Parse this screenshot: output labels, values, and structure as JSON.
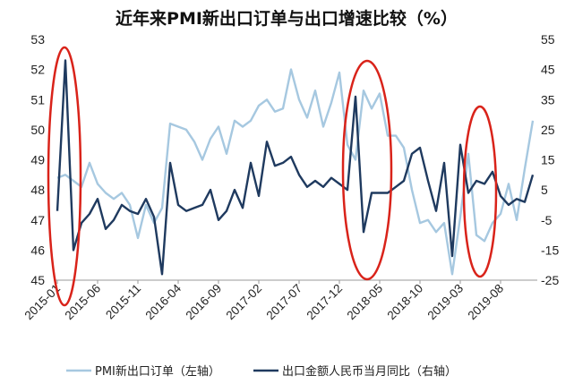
{
  "chart_data": {
    "type": "line",
    "title": "近年来PMI新出口订单与出口增速比较（%）",
    "left_axis": {
      "min": 45,
      "max": 53,
      "ticks": [
        45,
        46,
        47,
        48,
        49,
        50,
        51,
        52,
        53
      ]
    },
    "right_axis": {
      "min": -25,
      "max": 55,
      "ticks": [
        -25,
        -15,
        -5,
        5,
        15,
        25,
        35,
        45,
        55
      ]
    },
    "x_tick_labels": [
      "2015-01",
      "2015-06",
      "2015-11",
      "2016-04",
      "2016-09",
      "2017-02",
      "2017-07",
      "2017-12",
      "2018-05",
      "2018-10",
      "2019-03",
      "2019-08"
    ],
    "x_tick_indices": [
      0,
      5,
      10,
      15,
      20,
      25,
      30,
      35,
      40,
      45,
      50,
      55
    ],
    "grid": false,
    "legend_position": "bottom",
    "series": [
      {
        "name": "PMI新出口订单（左轴）",
        "axis": "left",
        "color": "#a6c8e0",
        "values": [
          48.4,
          48.5,
          48.3,
          48.1,
          48.9,
          48.2,
          47.9,
          47.7,
          47.9,
          47.5,
          46.4,
          47.5,
          46.9,
          47.4,
          50.2,
          50.1,
          50.0,
          49.6,
          49.0,
          49.7,
          50.1,
          49.2,
          50.3,
          50.1,
          50.3,
          50.8,
          51.0,
          50.6,
          50.7,
          52.0,
          51.0,
          50.4,
          51.3,
          50.1,
          50.9,
          51.9,
          49.5,
          49.0,
          51.3,
          50.7,
          51.2,
          49.8,
          49.8,
          49.4,
          48.0,
          46.9,
          47.0,
          46.6,
          46.9,
          45.2,
          47.1,
          49.2,
          46.5,
          46.3,
          46.9,
          47.2,
          48.2,
          47.0,
          48.7,
          50.3
        ]
      },
      {
        "name": "出口金额人民币当月同比（右轴）",
        "axis": "right",
        "color": "#1f3a5f",
        "values": [
          -2,
          48,
          -15,
          -6,
          -3,
          2,
          -8,
          -5,
          0,
          -2,
          -3,
          2,
          -4,
          -23,
          14,
          0,
          -2,
          -1,
          0,
          5,
          -5,
          -2,
          5,
          -1,
          14,
          3,
          21,
          13,
          14,
          16,
          10,
          6,
          8,
          6,
          9,
          7,
          5,
          36,
          -9,
          4,
          4,
          4,
          6,
          8,
          17,
          19,
          8,
          -2,
          14,
          -17,
          20,
          4,
          8,
          7,
          11,
          3,
          0,
          2,
          1,
          10
        ]
      }
    ]
  }
}
